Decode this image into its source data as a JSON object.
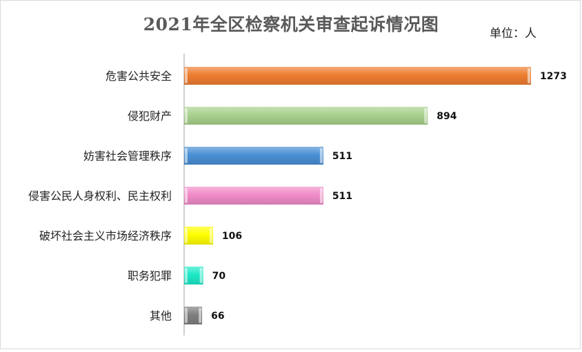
{
  "chart_data": {
    "type": "bar",
    "orientation": "horizontal",
    "title": "2021年全区检察机关审查起诉情况图",
    "unit_label": "单位：人",
    "categories": [
      "危害公共安全",
      "侵犯财产",
      "妨害社会管理秩序",
      "侵害公民人身权利、民主权利",
      "破坏社会主义市场经济秩序",
      "职务犯罪",
      "其他"
    ],
    "values": [
      1273,
      894,
      511,
      511,
      106,
      70,
      66
    ],
    "colors": [
      "#ed7d31",
      "#a9d18e",
      "#4a8fd4",
      "#f08cc8",
      "#ffff00",
      "#1de9c8",
      "#7f7f7f"
    ],
    "xlim": [
      0,
      1273
    ],
    "grid": false,
    "legend": "none"
  }
}
